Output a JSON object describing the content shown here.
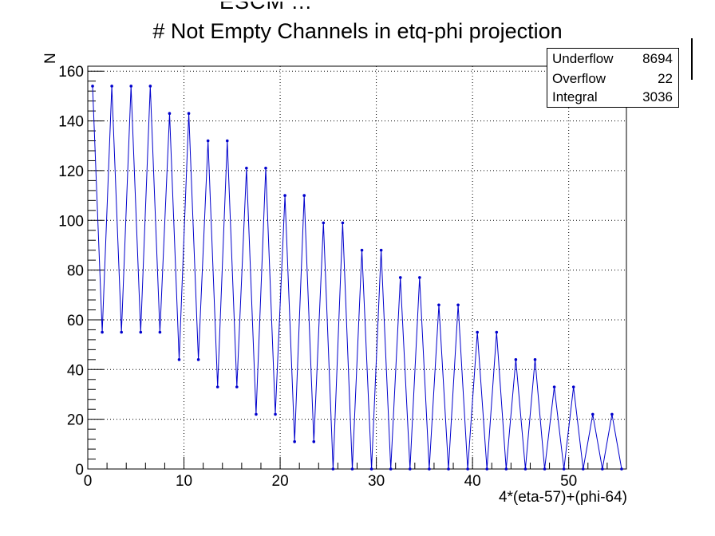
{
  "title_overlap_text": "ESCM ... ",
  "stats": {
    "underflow_label": "Underflow",
    "underflow_value": "8694",
    "overflow_label": "Overflow",
    "overflow_value": "22",
    "integral_label": "Integral",
    "integral_value": "3036"
  },
  "colors": {
    "line": "#0000cc",
    "marker": "#0000cc",
    "grid": "#000000"
  },
  "chart_data": {
    "type": "line",
    "title": "# Not Empty Channels in etq-phi projection",
    "xlabel": "4*(eta-57)+(phi-64)",
    "ylabel": "N",
    "xlim": [
      0,
      56
    ],
    "ylim": [
      0,
      162
    ],
    "xticks": [
      0,
      10,
      20,
      30,
      40,
      50
    ],
    "yticks": [
      0,
      20,
      40,
      60,
      80,
      100,
      120,
      140,
      160
    ],
    "grid": true,
    "series": [
      {
        "x": [
          0.5,
          1.5,
          2.5,
          3.5,
          4.5,
          5.5,
          6.5,
          7.5,
          8.5,
          9.5,
          10.5,
          11.5,
          12.5,
          13.5,
          14.5,
          15.5,
          16.5,
          17.5,
          18.5,
          19.5,
          20.5,
          21.5,
          22.5,
          23.5,
          24.5,
          25.5,
          26.5,
          27.5,
          28.5,
          29.5,
          30.5,
          31.5,
          32.5,
          33.5,
          34.5,
          35.5,
          36.5,
          37.5,
          38.5,
          39.5,
          40.5,
          41.5,
          42.5,
          43.5,
          44.5,
          45.5,
          46.5,
          47.5,
          48.5,
          49.5,
          50.5,
          51.5,
          52.5,
          53.5,
          54.5,
          55.5
        ],
        "values": [
          154,
          55,
          154,
          55,
          154,
          55,
          154,
          55,
          143,
          44,
          143,
          44,
          132,
          33,
          132,
          33,
          121,
          22,
          121,
          22,
          110,
          11,
          110,
          11,
          99,
          0,
          99,
          0,
          88,
          0,
          88,
          0,
          77,
          0,
          77,
          0,
          66,
          0,
          66,
          0,
          55,
          0,
          55,
          0,
          44,
          0,
          44,
          0,
          33,
          0,
          33,
          0,
          22,
          0,
          22,
          0
        ]
      }
    ]
  }
}
